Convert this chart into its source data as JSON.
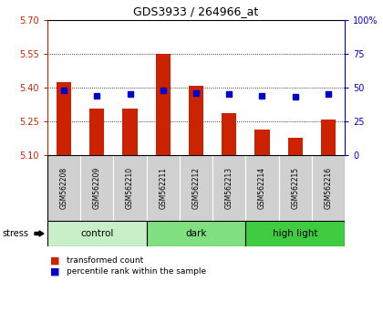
{
  "title": "GDS3933 / 264966_at",
  "samples": [
    "GSM562208",
    "GSM562209",
    "GSM562210",
    "GSM562211",
    "GSM562212",
    "GSM562213",
    "GSM562214",
    "GSM562215",
    "GSM562216"
  ],
  "red_values": [
    5.425,
    5.305,
    5.305,
    5.55,
    5.41,
    5.285,
    5.215,
    5.175,
    5.26
  ],
  "blue_values": [
    48,
    44,
    45,
    48,
    46,
    45,
    44,
    43,
    45
  ],
  "y_min": 5.1,
  "y_max": 5.7,
  "y_ticks_red": [
    5.1,
    5.25,
    5.4,
    5.55,
    5.7
  ],
  "y_ticks_blue": [
    0,
    25,
    50,
    75,
    100
  ],
  "groups": [
    {
      "label": "control",
      "start": 0,
      "end": 3,
      "color": "#c8f0c8"
    },
    {
      "label": "dark",
      "start": 3,
      "end": 6,
      "color": "#80e080"
    },
    {
      "label": "high light",
      "start": 6,
      "end": 9,
      "color": "#40cc40"
    }
  ],
  "bar_color": "#cc2200",
  "dot_color": "#0000cc",
  "bar_base": 5.1,
  "stress_label": "stress",
  "legend_items": [
    "transformed count",
    "percentile rank within the sample"
  ],
  "gridlines": [
    5.25,
    5.4,
    5.55
  ]
}
